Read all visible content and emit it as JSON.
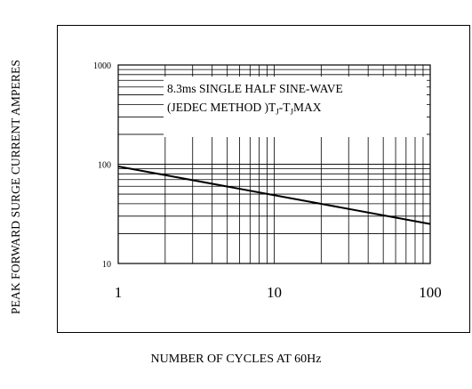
{
  "chart_data": {
    "type": "line",
    "title": "",
    "xlabel": "NUMBER OF CYCLES AT 60Hz",
    "ylabel": "PEAK FORWARD SURGE CURRENT AMPERES",
    "x_scale": "log",
    "y_scale": "log",
    "xlim": [
      1,
      100
    ],
    "ylim": [
      10,
      1000
    ],
    "x_ticks": [
      "1",
      "10",
      "100"
    ],
    "y_ticks": [
      "10",
      "100",
      "1000"
    ],
    "grid": true,
    "annotation": {
      "line1": "8.3ms SINGLE HALF SINE-WAVE",
      "line2_prefix": "(JEDEC METHOD )T",
      "line2_sub1": "J",
      "line2_mid": "-T",
      "line2_sub2": "J",
      "line2_suffix": "MAX"
    },
    "series": [
      {
        "x": [
          1,
          100
        ],
        "y": [
          95,
          25
        ]
      }
    ]
  }
}
